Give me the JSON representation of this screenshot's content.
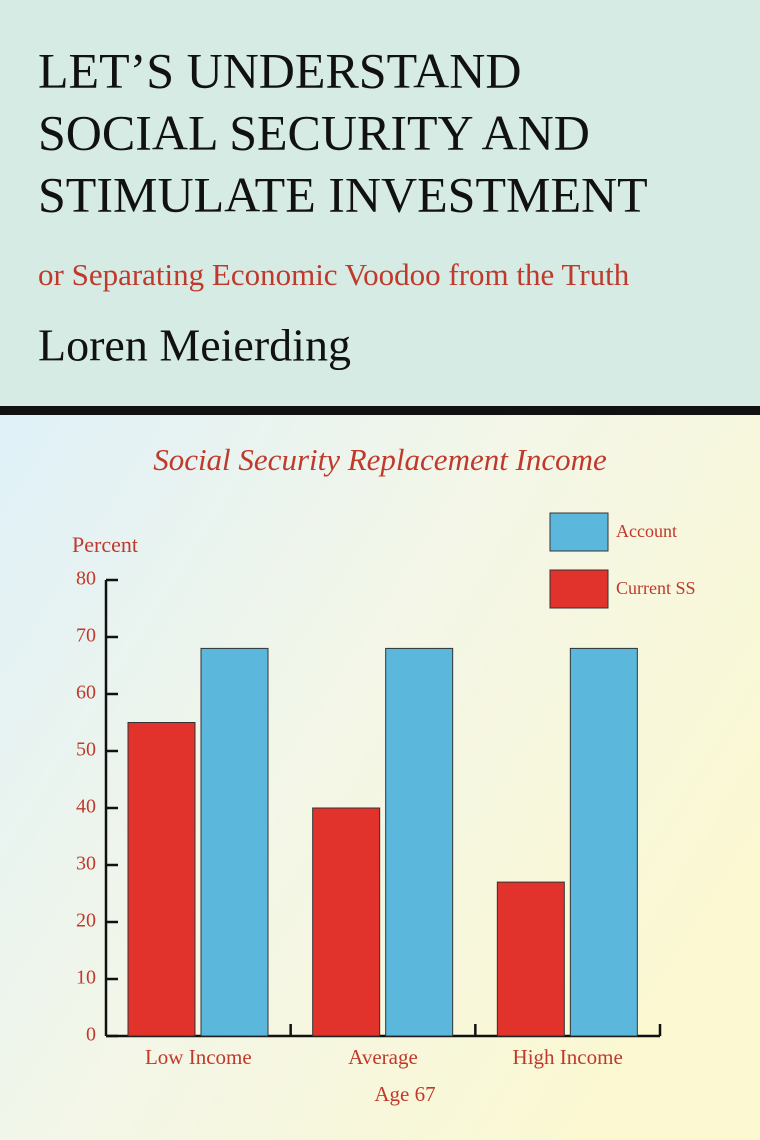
{
  "cover": {
    "title_lines": [
      "LET’S UNDERSTAND",
      "SOCIAL SECURITY AND",
      "STIMULATE INVESTMENT"
    ],
    "subtitle": "or Separating Economic Voodoo from the Truth",
    "author": "Loren Meierding"
  },
  "chart_data": {
    "type": "bar",
    "title": "Social Security Replacement Income",
    "y_label": "Percent",
    "x_label": "Age 67",
    "categories": [
      "Low Income",
      "Average",
      "High Income"
    ],
    "series": [
      {
        "name": "Account",
        "color": "#5bb8dc",
        "values": [
          68,
          68,
          68
        ]
      },
      {
        "name": "Current SS",
        "color": "#e1322b",
        "values": [
          55,
          40,
          27
        ]
      }
    ],
    "ylim": [
      0,
      80
    ],
    "yticks": [
      0,
      10,
      20,
      30,
      40,
      50,
      60,
      70,
      80
    ],
    "grid": false,
    "legend": "top-right"
  }
}
